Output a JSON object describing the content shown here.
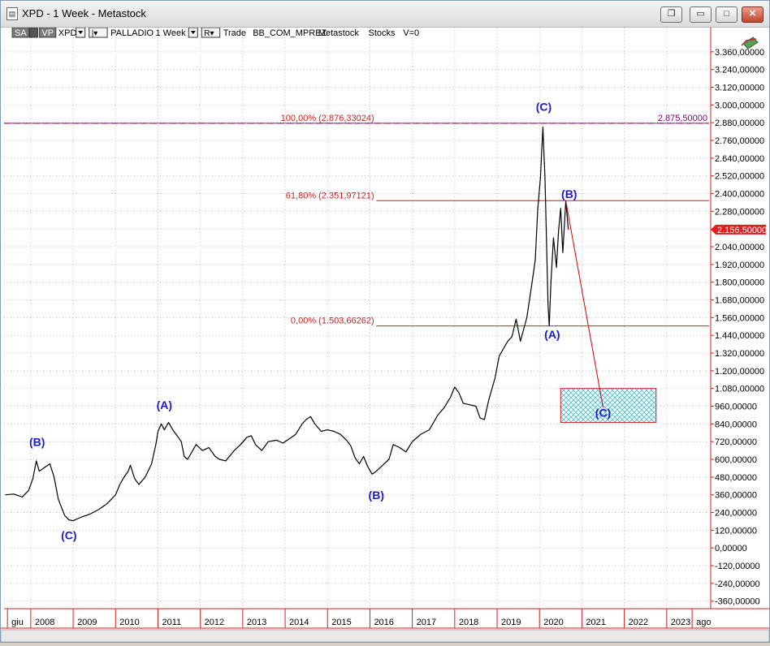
{
  "window": {
    "title": "XPD - 1 Week - Metastock",
    "icon": "chart-document-icon",
    "controls": {
      "restore_icon": "restore-icon",
      "minimize_label": "▭",
      "maximize_label": "□",
      "close_label": "✕"
    }
  },
  "toolbar": {
    "items": [
      {
        "label": "SA",
        "style": "dark",
        "dropdown": true
      },
      {
        "label": "VP",
        "style": "dark",
        "dropdown": false
      },
      {
        "label": "XPD",
        "style": "text",
        "dropdown": true
      },
      {
        "label": "|▾",
        "style": "box",
        "dropdown": false
      },
      {
        "label": "PALLADIO",
        "style": "text",
        "dropdown": false
      },
      {
        "label": "1 Week",
        "style": "text",
        "dropdown": true
      },
      {
        "label": "R▾",
        "style": "box",
        "dropdown": false
      },
      {
        "label": "Trade",
        "style": "text",
        "dropdown": false
      },
      {
        "label": "BB_COM_MPREZ",
        "style": "text",
        "dropdown": false
      },
      {
        "label": "Metastock",
        "style": "text",
        "dropdown": false
      },
      {
        "label": "Stocks",
        "style": "text",
        "dropdown": false
      },
      {
        "label": "V=0",
        "style": "text",
        "dropdown": false
      }
    ],
    "tool_icon": "drawing-tools-icon"
  },
  "chart_data": {
    "type": "line",
    "instrument": "XPD",
    "period": "1 Week",
    "ylim": [
      -400,
      3480
    ],
    "y_ticks": [
      "3.360,00000",
      "3.240,00000",
      "3.120,00000",
      "3.000,00000",
      "2.880,00000",
      "2.760,00000",
      "2.640,00000",
      "2.520,00000",
      "2.400,00000",
      "2.280,00000",
      "2.160,00000",
      "2.040,00000",
      "1.920,00000",
      "1.800,00000",
      "1.680,00000",
      "1.560,00000",
      "1.440,00000",
      "1.320,00000",
      "1.200,00000",
      "1.080,00000",
      "960,00000",
      "840,00000",
      "720,00000",
      "600,00000",
      "480,00000",
      "360,00000",
      "240,00000",
      "120,00000",
      "0,00000",
      "-120,00000",
      "-240,00000",
      "-360,00000"
    ],
    "y_tick_values": [
      3360,
      3240,
      3120,
      3000,
      2880,
      2760,
      2640,
      2520,
      2400,
      2280,
      2160,
      2040,
      1920,
      1800,
      1680,
      1560,
      1440,
      1320,
      1200,
      1080,
      960,
      840,
      720,
      600,
      480,
      360,
      240,
      120,
      0,
      -120,
      -240,
      -360
    ],
    "x_ticks": [
      "giu",
      "2008",
      "2009",
      "2010",
      "2011",
      "2012",
      "2013",
      "2014",
      "2015",
      "2016",
      "2017",
      "2018",
      "2019",
      "2020",
      "2021",
      "2022",
      "2023",
      "ago"
    ],
    "x_tick_values": [
      2007.45,
      2008,
      2009,
      2010,
      2011,
      2012,
      2013,
      2014,
      2015,
      2016,
      2017,
      2018,
      2019,
      2020,
      2021,
      2022,
      2023,
      2023.6
    ],
    "xlim": [
      2007.37,
      2024.0
    ],
    "series": [
      {
        "points": [
          [
            2007.4,
            360
          ],
          [
            2007.6,
            365
          ],
          [
            2007.8,
            345
          ],
          [
            2007.95,
            390
          ],
          [
            2008.05,
            470
          ],
          [
            2008.13,
            590
          ],
          [
            2008.2,
            520
          ],
          [
            2008.3,
            540
          ],
          [
            2008.45,
            570
          ],
          [
            2008.55,
            480
          ],
          [
            2008.65,
            330
          ],
          [
            2008.8,
            220
          ],
          [
            2008.9,
            190
          ],
          [
            2009.0,
            185
          ],
          [
            2009.2,
            210
          ],
          [
            2009.4,
            230
          ],
          [
            2009.6,
            260
          ],
          [
            2009.8,
            300
          ],
          [
            2010.0,
            360
          ],
          [
            2010.1,
            430
          ],
          [
            2010.2,
            480
          ],
          [
            2010.3,
            520
          ],
          [
            2010.35,
            560
          ],
          [
            2010.45,
            470
          ],
          [
            2010.55,
            430
          ],
          [
            2010.7,
            480
          ],
          [
            2010.85,
            570
          ],
          [
            2010.95,
            700
          ],
          [
            2011.0,
            790
          ],
          [
            2011.08,
            840
          ],
          [
            2011.15,
            800
          ],
          [
            2011.25,
            850
          ],
          [
            2011.35,
            800
          ],
          [
            2011.45,
            760
          ],
          [
            2011.55,
            720
          ],
          [
            2011.62,
            620
          ],
          [
            2011.7,
            600
          ],
          [
            2011.8,
            650
          ],
          [
            2011.9,
            700
          ],
          [
            2012.05,
            660
          ],
          [
            2012.2,
            680
          ],
          [
            2012.35,
            620
          ],
          [
            2012.45,
            600
          ],
          [
            2012.6,
            590
          ],
          [
            2012.8,
            660
          ],
          [
            2012.95,
            700
          ],
          [
            2013.1,
            750
          ],
          [
            2013.2,
            760
          ],
          [
            2013.3,
            700
          ],
          [
            2013.45,
            660
          ],
          [
            2013.6,
            720
          ],
          [
            2013.8,
            730
          ],
          [
            2013.95,
            710
          ],
          [
            2014.1,
            740
          ],
          [
            2014.25,
            770
          ],
          [
            2014.4,
            840
          ],
          [
            2014.5,
            870
          ],
          [
            2014.6,
            890
          ],
          [
            2014.7,
            840
          ],
          [
            2014.85,
            790
          ],
          [
            2015.0,
            800
          ],
          [
            2015.15,
            790
          ],
          [
            2015.3,
            770
          ],
          [
            2015.45,
            730
          ],
          [
            2015.55,
            690
          ],
          [
            2015.65,
            610
          ],
          [
            2015.75,
            570
          ],
          [
            2015.85,
            620
          ],
          [
            2015.95,
            550
          ],
          [
            2016.05,
            500
          ],
          [
            2016.15,
            520
          ],
          [
            2016.3,
            560
          ],
          [
            2016.45,
            600
          ],
          [
            2016.55,
            700
          ],
          [
            2016.7,
            680
          ],
          [
            2016.85,
            650
          ],
          [
            2017.0,
            720
          ],
          [
            2017.2,
            770
          ],
          [
            2017.4,
            800
          ],
          [
            2017.6,
            900
          ],
          [
            2017.75,
            950
          ],
          [
            2017.9,
            1020
          ],
          [
            2018.0,
            1090
          ],
          [
            2018.1,
            1050
          ],
          [
            2018.2,
            980
          ],
          [
            2018.35,
            970
          ],
          [
            2018.5,
            960
          ],
          [
            2018.6,
            880
          ],
          [
            2018.7,
            870
          ],
          [
            2018.8,
            1000
          ],
          [
            2018.95,
            1150
          ],
          [
            2019.05,
            1300
          ],
          [
            2019.15,
            1350
          ],
          [
            2019.25,
            1400
          ],
          [
            2019.35,
            1430
          ],
          [
            2019.45,
            1550
          ],
          [
            2019.55,
            1400
          ],
          [
            2019.7,
            1560
          ],
          [
            2019.8,
            1750
          ],
          [
            2019.9,
            1950
          ],
          [
            2019.96,
            2300
          ],
          [
            2020.02,
            2500
          ],
          [
            2020.08,
            2850
          ],
          [
            2020.13,
            2500
          ],
          [
            2020.2,
            1650
          ],
          [
            2020.23,
            1503
          ],
          [
            2020.27,
            1800
          ],
          [
            2020.33,
            2100
          ],
          [
            2020.4,
            1900
          ],
          [
            2020.45,
            2150
          ],
          [
            2020.5,
            2300
          ],
          [
            2020.55,
            2000
          ],
          [
            2020.62,
            2351
          ],
          [
            2020.68,
            2156
          ]
        ]
      }
    ],
    "annotations": [
      {
        "label": "(B)",
        "x": 2008.15,
        "y": 690,
        "color": "#1a1acd"
      },
      {
        "label": "(C)",
        "x": 2008.9,
        "y": 60,
        "color": "#1a1acd"
      },
      {
        "label": "(A)",
        "x": 2011.15,
        "y": 940,
        "color": "#1a1acd"
      },
      {
        "label": "(B)",
        "x": 2016.15,
        "y": 330,
        "color": "#1a1acd"
      },
      {
        "label": "(C)",
        "x": 2020.1,
        "y": 2960,
        "color": "#1a1acd"
      },
      {
        "label": "(B)",
        "x": 2020.7,
        "y": 2370,
        "color": "#1a1acd"
      },
      {
        "label": "(A)",
        "x": 2020.3,
        "y": 1420,
        "color": "#1a1acd"
      },
      {
        "label": "(C)",
        "x": 2021.5,
        "y": 890,
        "color": "#1a1acd"
      }
    ],
    "fib_levels": [
      {
        "label": "100,00% (2.876,33024)",
        "value": 2876.33
      },
      {
        "label": "61,80% (2.351,97121)",
        "value": 2351.97
      },
      {
        "label": "0,00% (1.503,66262)",
        "value": 1503.66
      }
    ],
    "high_marker": {
      "label": "2.875,50000",
      "value": 2875.5,
      "color": "#800080"
    },
    "last_price": {
      "label": "2.156,50000",
      "value": 2156.5,
      "color": "#e02020"
    },
    "projection": {
      "from": [
        2020.62,
        2351
      ],
      "to": [
        2021.5,
        950
      ],
      "color": "#cc0000"
    },
    "target_zone": {
      "x0": 2020.5,
      "x1": 2022.75,
      "y0": 850,
      "y1": 1080,
      "color": "#40c0d0"
    },
    "grid": true
  }
}
